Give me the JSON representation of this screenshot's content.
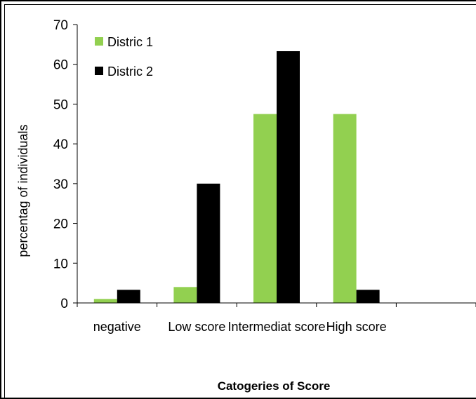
{
  "chart_data": {
    "type": "bar",
    "categories": [
      "negative",
      "Low score",
      "Intermediat score",
      "High score",
      ""
    ],
    "series": [
      {
        "name": "Distric 1",
        "values": [
          1,
          4,
          47.5,
          47.5,
          null
        ],
        "color": "#92d050"
      },
      {
        "name": "Distric 2",
        "values": [
          3.3,
          30,
          63.3,
          3.3,
          null
        ],
        "color": "#000000"
      }
    ],
    "xlabel": "Catogeries of Score",
    "ylabel": "percentag of individuals",
    "ylim": [
      0,
      70
    ],
    "yticks": [
      0,
      10,
      20,
      30,
      40,
      50,
      60,
      70
    ],
    "grid": false,
    "legend_position": "top-left"
  }
}
